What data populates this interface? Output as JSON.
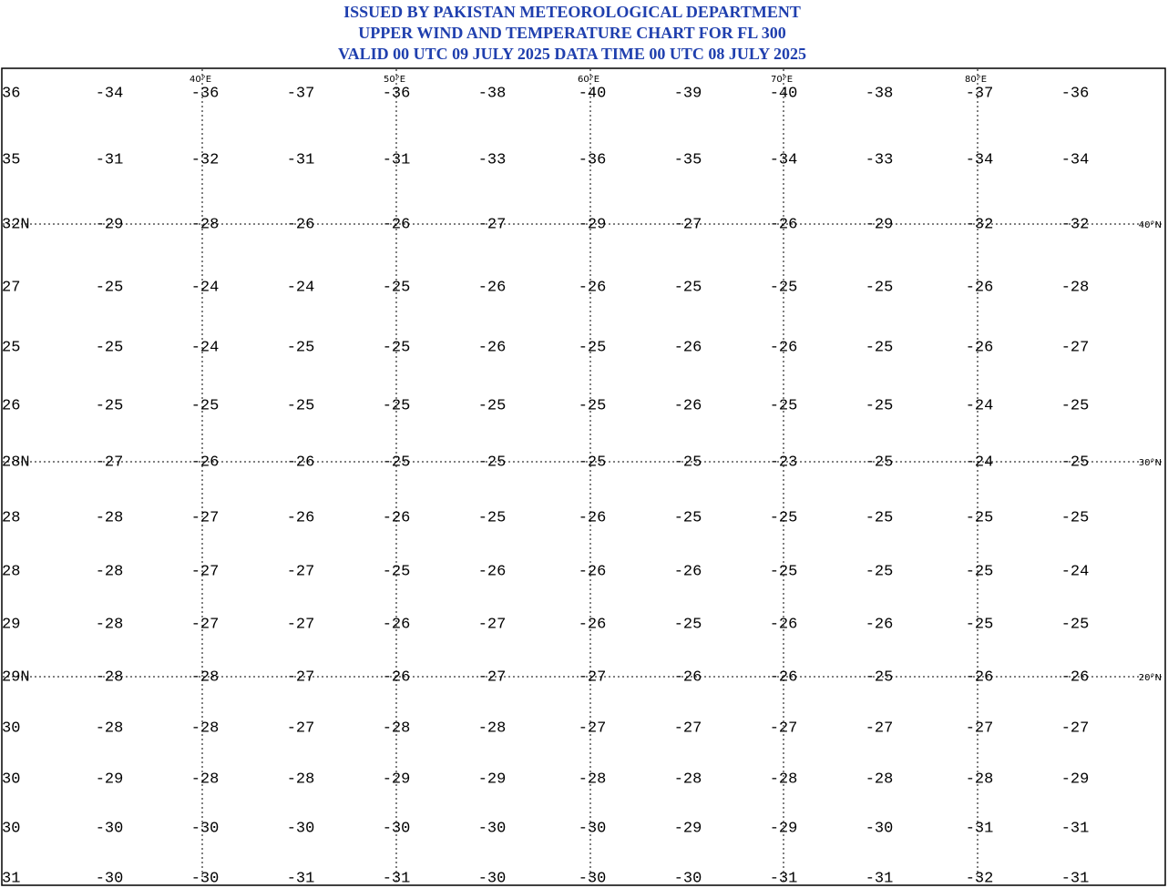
{
  "header": {
    "title": [
      "ISSUED BY PAKISTAN METEOROLOGICAL DEPARTMENT",
      "UPPER WIND AND TEMPERATURE CHART FOR FL 300",
      "VALID 00 UTC 09 JULY 2025 DATA TIME 00 UTC 08 JULY 2025"
    ]
  },
  "map": {
    "lon_labels": [
      "40°E",
      "50°E",
      "60°E",
      "70°E",
      "80°E"
    ],
    "lat_labels": [
      "40°N",
      "30°N",
      "20°N"
    ],
    "rows": [
      {
        "edge": "36",
        "temps": [
          "-34",
          "-36",
          "-37",
          "-36",
          "-38",
          "-40",
          "-39",
          "-40",
          "-38",
          "-37",
          "-36"
        ]
      },
      {
        "edge": "35",
        "temps": [
          "-31",
          "-32",
          "-31",
          "-31",
          "-33",
          "-36",
          "-35",
          "-34",
          "-33",
          "-34",
          "-34"
        ]
      },
      {
        "edge": "32N",
        "temps": [
          "-29",
          "-28",
          "-26",
          "-26",
          "-27",
          "-29",
          "-27",
          "-26",
          "-29",
          "-32",
          "-32"
        ]
      },
      {
        "edge": "27",
        "temps": [
          "-25",
          "-24",
          "-24",
          "-25",
          "-26",
          "-26",
          "-25",
          "-25",
          "-25",
          "-26",
          "-28"
        ]
      },
      {
        "edge": "25",
        "temps": [
          "-25",
          "-24",
          "-25",
          "-25",
          "-26",
          "-25",
          "-26",
          "-26",
          "-25",
          "-26",
          "-27"
        ]
      },
      {
        "edge": "26",
        "temps": [
          "-25",
          "-25",
          "-25",
          "-25",
          "-25",
          "-25",
          "-26",
          "-25",
          "-25",
          "-24",
          "-25"
        ]
      },
      {
        "edge": "28N",
        "temps": [
          "-27",
          "-26",
          "-26",
          "-25",
          "-25",
          "-25",
          "-25",
          "-23",
          "-25",
          "-24",
          "-25"
        ]
      },
      {
        "edge": "28",
        "temps": [
          "-28",
          "-27",
          "-26",
          "-26",
          "-25",
          "-26",
          "-25",
          "-25",
          "-25",
          "-25",
          "-25"
        ]
      },
      {
        "edge": "28",
        "temps": [
          "-28",
          "-27",
          "-27",
          "-25",
          "-26",
          "-26",
          "-26",
          "-25",
          "-25",
          "-25",
          "-24"
        ]
      },
      {
        "edge": "29",
        "temps": [
          "-28",
          "-27",
          "-27",
          "-26",
          "-27",
          "-26",
          "-25",
          "-26",
          "-26",
          "-25",
          "-25"
        ]
      },
      {
        "edge": "29N",
        "temps": [
          "-28",
          "-28",
          "-27",
          "-26",
          "-27",
          "-27",
          "-26",
          "-26",
          "-25",
          "-26",
          "-26"
        ]
      },
      {
        "edge": "30",
        "temps": [
          "-28",
          "-28",
          "-27",
          "-28",
          "-28",
          "-27",
          "-27",
          "-27",
          "-27",
          "-27",
          "-27"
        ]
      },
      {
        "edge": "30",
        "temps": [
          "-29",
          "-28",
          "-28",
          "-29",
          "-29",
          "-28",
          "-28",
          "-28",
          "-28",
          "-28",
          "-29"
        ]
      },
      {
        "edge": "30",
        "temps": [
          "-30",
          "-30",
          "-30",
          "-30",
          "-30",
          "-30",
          "-29",
          "-29",
          "-30",
          "-31",
          "-31"
        ]
      },
      {
        "edge": "31",
        "temps": [
          "-30",
          "-30",
          "-31",
          "-31",
          "-30",
          "-30",
          "-30",
          "-31",
          "-31",
          "-32",
          "-31"
        ]
      }
    ]
  }
}
